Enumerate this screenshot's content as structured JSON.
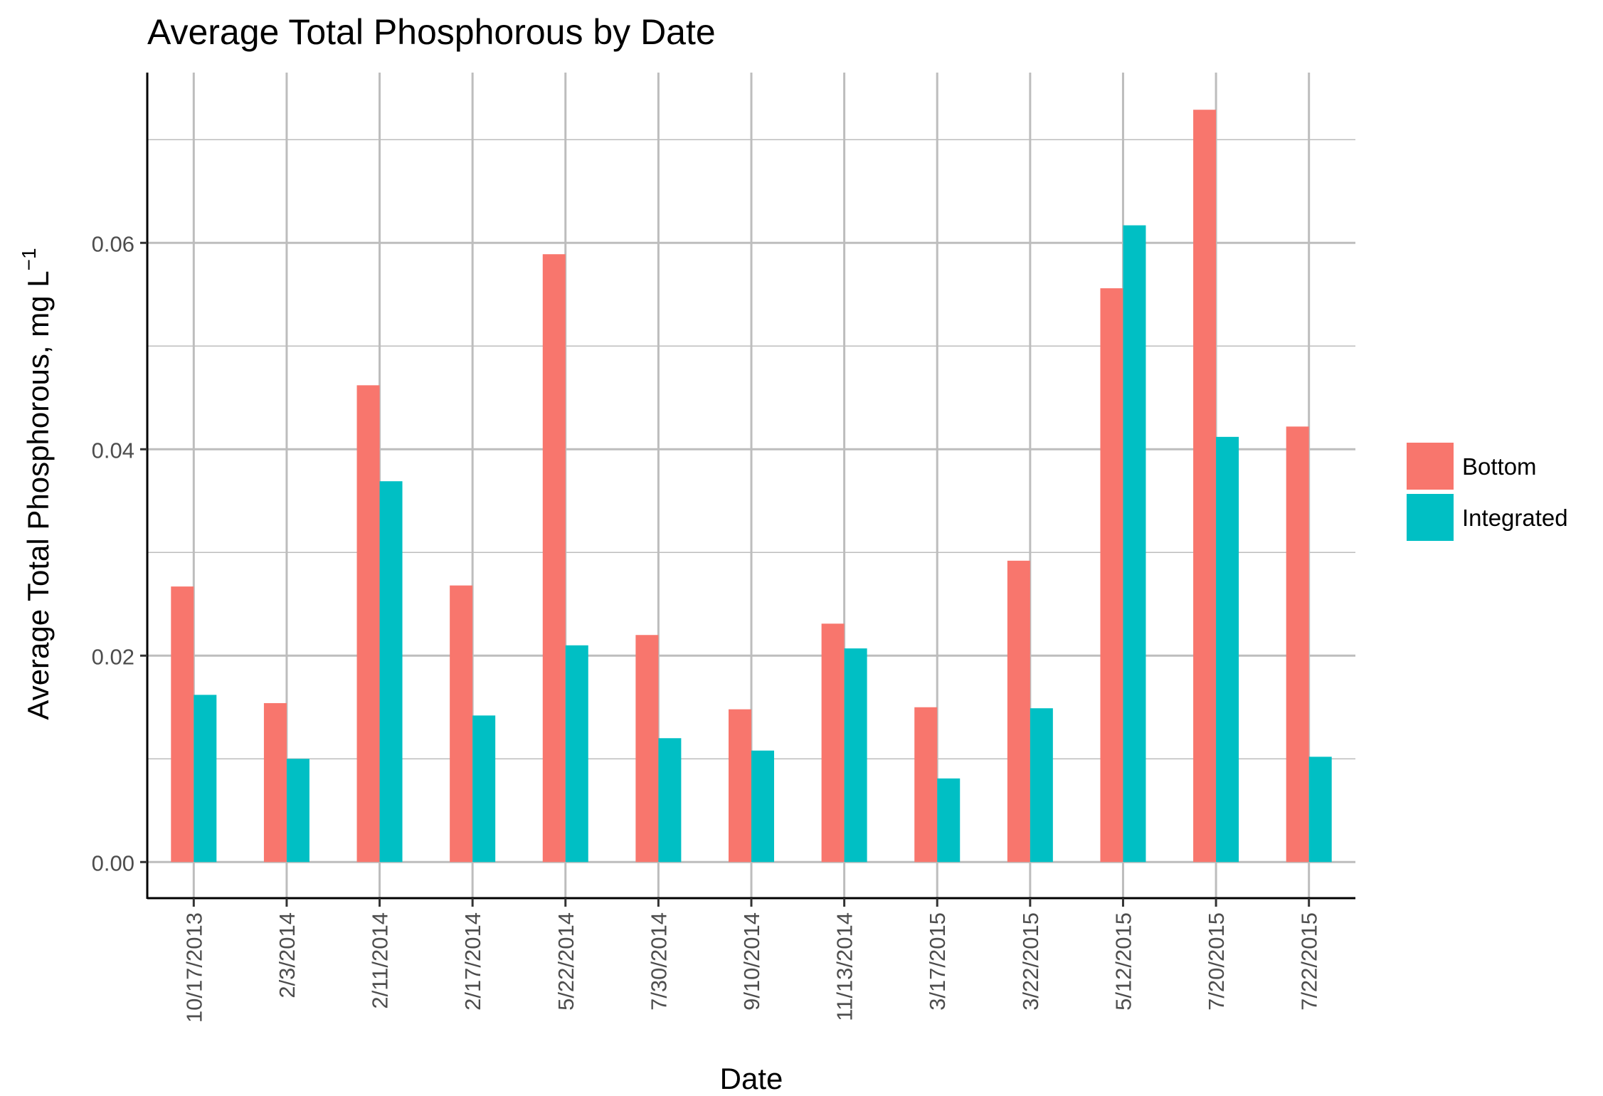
{
  "chart_data": {
    "type": "bar",
    "title": "Average Total Phosphorous by Date",
    "xlabel": "Date",
    "ylabel": "Average Total Phosphorous, mg L",
    "ylabel_superscript": "−1",
    "categories": [
      "10/17/2013",
      "2/3/2014",
      "2/11/2014",
      "2/17/2014",
      "5/22/2014",
      "7/30/2014",
      "9/10/2014",
      "11/13/2014",
      "3/17/2015",
      "3/22/2015",
      "5/12/2015",
      "7/20/2015",
      "7/22/2015"
    ],
    "series": [
      {
        "name": "Bottom",
        "color": "#F8766D",
        "values": [
          0.0267,
          0.0154,
          0.0462,
          0.0268,
          0.0589,
          0.022,
          0.0148,
          0.0231,
          0.015,
          0.0292,
          0.0556,
          0.0729,
          0.0422
        ]
      },
      {
        "name": "Integrated",
        "color": "#00BFC4",
        "values": [
          0.0162,
          0.01,
          0.0369,
          0.0142,
          0.021,
          0.012,
          0.0108,
          0.0207,
          0.0081,
          0.0149,
          0.0617,
          0.0412,
          0.0102
        ]
      }
    ],
    "yticks": [
      "0.00",
      "0.02",
      "0.04",
      "0.06"
    ],
    "ylim": [
      -0.0035,
      0.0765
    ],
    "grid": true,
    "legend_position": "right"
  }
}
